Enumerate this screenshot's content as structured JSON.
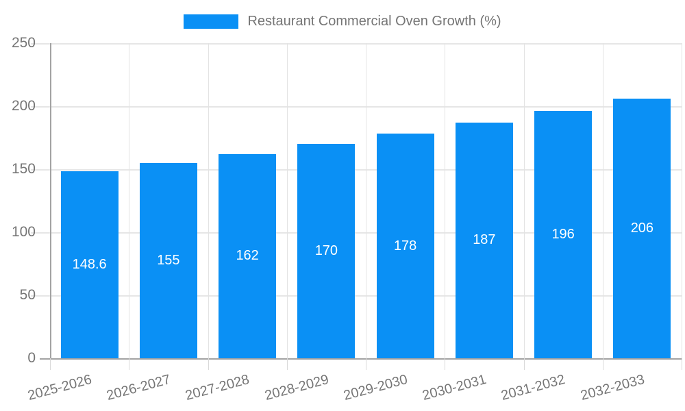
{
  "chart_data": {
    "type": "bar",
    "title": "Restaurant Commercial Oven Growth (%)",
    "categories": [
      "2025-2026",
      "2026-2027",
      "2027-2028",
      "2028-2029",
      "2029-2030",
      "2030-2031",
      "2031-2032",
      "2032-2033"
    ],
    "values": [
      148.6,
      155,
      162,
      170,
      178,
      187,
      196,
      206
    ],
    "bar_labels": [
      "148.6",
      "155",
      "162",
      "170",
      "178",
      "187",
      "196",
      "206"
    ],
    "xlabel": "",
    "ylabel": "",
    "ylim": [
      0,
      250
    ],
    "yticks": [
      0,
      50,
      100,
      150,
      200,
      250
    ],
    "grid": true,
    "legend_position": "top",
    "colors": {
      "bar": "#0a90f5",
      "grid": "#e6e6e6",
      "axis": "#a3a3a3",
      "text": "#757575",
      "value_label": "#ffffff",
      "background": "#ffffff"
    }
  }
}
